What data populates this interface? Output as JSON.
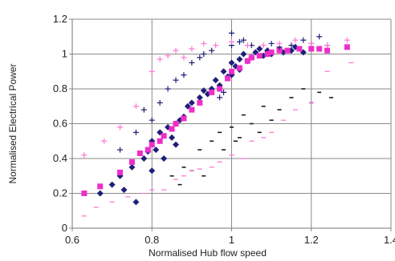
{
  "chart_data": {
    "type": "scatter",
    "title": "",
    "xlabel": "Normalised Hub flow speed",
    "ylabel": "Normalised Electrical Power",
    "xlim": [
      0.6,
      1.4
    ],
    "ylim": [
      0,
      1.2
    ],
    "xticks": [
      "0.6",
      "0.8",
      "1",
      "1.2",
      "1.4"
    ],
    "yticks": [
      "0",
      "0.2",
      "0.4",
      "0.6",
      "0.8",
      "1",
      "1.2"
    ],
    "grid": true,
    "colors": {
      "navy": "#1f1f7a",
      "magenta": "#ee2ec9",
      "pink": "#ff78d6",
      "dark": "#1a1a1a"
    },
    "series": [
      {
        "marker": "diamond",
        "color": "#1f1f7a",
        "x": [
          0.67,
          0.7,
          0.72,
          0.73,
          0.75,
          0.76,
          0.78,
          0.79,
          0.8,
          0.8,
          0.81,
          0.82,
          0.83,
          0.84,
          0.85,
          0.86,
          0.86,
          0.87,
          0.88,
          0.89,
          0.9,
          0.92,
          0.93,
          0.94,
          0.95,
          0.96,
          0.97,
          0.98,
          0.99,
          1.0,
          1.0,
          1.01,
          1.02,
          1.02,
          1.03,
          1.04,
          1.05,
          1.06,
          1.07,
          1.08,
          1.09,
          1.1,
          1.12,
          1.13,
          1.15,
          1.16,
          1.18
        ],
        "y": [
          0.2,
          0.25,
          0.3,
          0.22,
          0.35,
          0.15,
          0.4,
          0.44,
          0.5,
          0.33,
          0.45,
          0.55,
          0.4,
          0.58,
          0.52,
          0.6,
          0.48,
          0.62,
          0.64,
          0.7,
          0.72,
          0.75,
          0.79,
          0.77,
          0.8,
          0.85,
          0.82,
          0.9,
          0.87,
          0.88,
          0.95,
          0.93,
          0.91,
          0.97,
          1.0,
          0.96,
          0.98,
          1.01,
          1.03,
          0.99,
          1.02,
          1.0,
          1.03,
          1.01,
          1.02,
          1.04,
          1.01
        ]
      },
      {
        "marker": "square",
        "color": "#ee2ec9",
        "x": [
          0.63,
          0.67,
          0.72,
          0.75,
          0.77,
          0.79,
          0.8,
          0.82,
          0.83,
          0.85,
          0.86,
          0.88,
          0.9,
          0.92,
          0.95,
          0.97,
          0.99,
          1.0,
          1.02,
          1.04,
          1.05,
          1.07,
          1.09,
          1.1,
          1.12,
          1.14,
          1.17,
          1.2,
          1.22,
          1.24,
          1.29
        ],
        "y": [
          0.2,
          0.24,
          0.32,
          0.38,
          0.43,
          0.45,
          0.48,
          0.5,
          0.53,
          0.57,
          0.6,
          0.63,
          0.68,
          0.72,
          0.78,
          0.8,
          0.86,
          0.9,
          0.92,
          0.96,
          0.98,
          0.99,
          1.0,
          1.01,
          1.02,
          1.02,
          1.03,
          1.03,
          1.03,
          1.02,
          1.04
        ]
      },
      {
        "marker": "plus",
        "color": "#1f1f7a",
        "x": [
          0.72,
          0.76,
          0.78,
          0.8,
          0.82,
          0.84,
          0.86,
          0.88,
          0.9,
          0.92,
          0.93,
          0.95,
          0.97,
          0.98,
          1.0,
          1.0,
          1.02,
          1.03,
          1.05,
          1.07,
          1.1,
          1.12,
          1.15,
          1.18,
          1.2,
          1.22,
          1.24
        ],
        "y": [
          0.45,
          0.55,
          0.68,
          0.62,
          0.72,
          0.8,
          0.85,
          0.88,
          0.95,
          0.98,
          1.0,
          1.02,
          0.75,
          0.78,
          1.05,
          1.12,
          1.07,
          1.08,
          1.05,
          1.03,
          1.06,
          1.04,
          1.05,
          1.08,
          1.06,
          1.1,
          1.05
        ]
      },
      {
        "marker": "dash",
        "color": "#1a1a1a",
        "x": [
          0.85,
          0.87,
          0.88,
          0.9,
          0.92,
          0.93,
          0.95,
          0.97,
          0.98,
          1.0,
          1.01,
          1.02,
          1.03,
          1.05,
          1.07,
          1.08,
          1.1,
          1.12,
          1.15,
          1.18,
          1.2,
          1.22,
          1.25
        ],
        "y": [
          0.3,
          0.25,
          0.35,
          0.33,
          0.45,
          0.3,
          0.5,
          0.55,
          0.45,
          0.58,
          0.5,
          0.52,
          0.65,
          0.6,
          0.55,
          0.7,
          0.62,
          0.68,
          0.75,
          0.8,
          0.72,
          0.78,
          0.75
        ]
      },
      {
        "marker": "minus",
        "color": "#ff78d6",
        "x": [
          0.63,
          0.66,
          0.7,
          0.74,
          0.78,
          0.8,
          0.83,
          0.86,
          0.88,
          0.9,
          0.92,
          0.95,
          0.97,
          1.0,
          1.03,
          1.05,
          1.08,
          1.1,
          1.13,
          1.16,
          1.2,
          1.24,
          1.3
        ],
        "y": [
          0.07,
          0.12,
          0.15,
          0.18,
          0.2,
          0.22,
          0.22,
          0.28,
          0.3,
          0.33,
          0.34,
          0.35,
          0.38,
          0.42,
          0.4,
          0.5,
          0.52,
          0.55,
          0.62,
          0.68,
          0.72,
          0.9,
          0.95
        ]
      },
      {
        "marker": "plus",
        "color": "#ff78d6",
        "x": [
          0.63,
          0.68,
          0.72,
          0.76,
          0.8,
          0.82,
          0.84,
          0.86,
          0.88,
          0.9,
          0.93,
          0.96,
          1.0,
          1.04,
          1.08,
          1.12,
          1.16,
          1.2,
          1.24,
          1.29
        ],
        "y": [
          0.42,
          0.5,
          0.58,
          0.7,
          0.9,
          0.97,
          0.99,
          1.02,
          0.98,
          1.03,
          1.06,
          1.05,
          1.07,
          1.05,
          1.05,
          1.06,
          1.08,
          1.06,
          1.05,
          1.08
        ]
      }
    ]
  }
}
